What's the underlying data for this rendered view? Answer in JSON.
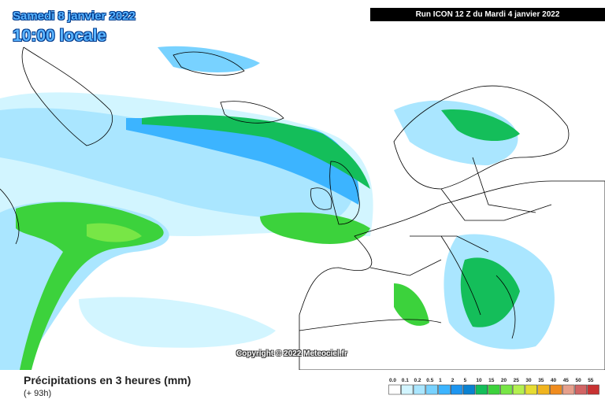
{
  "header": {
    "date": "Samedi 8 janvier 2022",
    "time": "10:00 locale",
    "run": "Run ICON 12 Z du Mardi 4 janvier 2022"
  },
  "copyright": "Copyright © 2022 Meteociel.fr",
  "footer": {
    "product": "Précipitations en 3 heures (mm)",
    "lead_time": "(+ 93h)"
  },
  "legend": {
    "items": [
      {
        "label": "0.0",
        "color": "#ffffff"
      },
      {
        "label": "0.1",
        "color": "#d2f5ff"
      },
      {
        "label": "0.2",
        "color": "#aae6ff"
      },
      {
        "label": "0.5",
        "color": "#78d2ff"
      },
      {
        "label": "1",
        "color": "#3cb4ff"
      },
      {
        "label": "2",
        "color": "#1e96f0"
      },
      {
        "label": "5",
        "color": "#0a82d2"
      },
      {
        "label": "10",
        "color": "#14be5a"
      },
      {
        "label": "15",
        "color": "#3cd23c"
      },
      {
        "label": "20",
        "color": "#78e646"
      },
      {
        "label": "25",
        "color": "#b4f050"
      },
      {
        "label": "30",
        "color": "#e6dc32"
      },
      {
        "label": "35",
        "color": "#f0b41e"
      },
      {
        "label": "40",
        "color": "#f08c1e"
      },
      {
        "label": "45",
        "color": "#e6a08c"
      },
      {
        "label": "50",
        "color": "#d26464"
      },
      {
        "label": "55",
        "color": "#c83232"
      }
    ]
  }
}
